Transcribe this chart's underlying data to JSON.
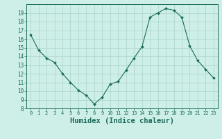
{
  "x": [
    0,
    1,
    2,
    3,
    4,
    5,
    6,
    7,
    8,
    9,
    10,
    11,
    12,
    13,
    14,
    15,
    16,
    17,
    18,
    19,
    20,
    21,
    22,
    23
  ],
  "y": [
    16.5,
    14.7,
    13.8,
    13.3,
    12.0,
    11.0,
    10.1,
    9.5,
    8.5,
    9.3,
    10.8,
    11.1,
    12.4,
    13.8,
    15.1,
    18.5,
    19.0,
    19.5,
    19.3,
    18.5,
    15.2,
    13.5,
    12.5,
    11.5
  ],
  "line_color": "#1a6b5a",
  "marker": "D",
  "marker_size": 2.0,
  "bg_color": "#ceeee8",
  "grid_color": "#aad4cc",
  "axis_color": "#1a6b5a",
  "tick_color": "#1a6b5a",
  "xlabel": "Humidex (Indice chaleur)",
  "xlabel_fontsize": 7.5,
  "ylim": [
    8,
    20
  ],
  "xlim": [
    -0.5,
    23.5
  ],
  "yticks": [
    8,
    9,
    10,
    11,
    12,
    13,
    14,
    15,
    16,
    17,
    18,
    19
  ],
  "xticks": [
    0,
    1,
    2,
    3,
    4,
    5,
    6,
    7,
    8,
    9,
    10,
    11,
    12,
    13,
    14,
    15,
    16,
    17,
    18,
    19,
    20,
    21,
    22,
    23
  ]
}
